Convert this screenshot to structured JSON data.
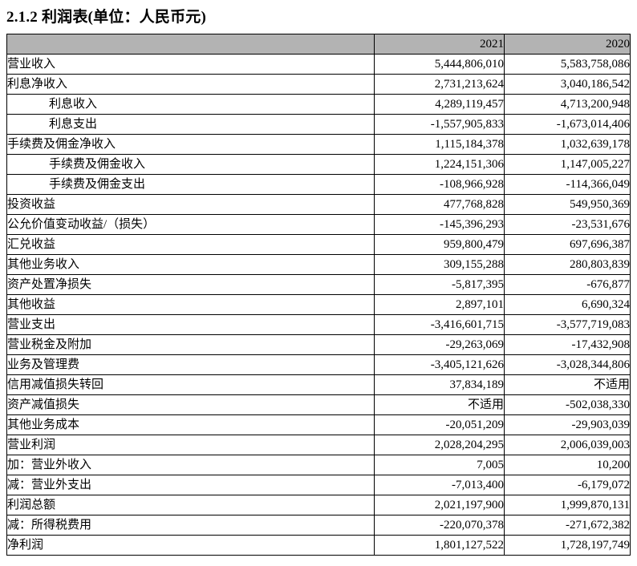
{
  "title": "2.1.2 利润表(单位：人民币元)",
  "table": {
    "columns": [
      "",
      "2021",
      "2020"
    ],
    "rows": [
      {
        "label": "营业收入",
        "indent": 0,
        "v2021": "5,444,806,010",
        "v2020": "5,583,758,086"
      },
      {
        "label": "利息净收入",
        "indent": 0,
        "v2021": "2,731,213,624",
        "v2020": "3,040,186,542"
      },
      {
        "label": "利息收入",
        "indent": 1,
        "v2021": "4,289,119,457",
        "v2020": "4,713,200,948"
      },
      {
        "label": "利息支出",
        "indent": 1,
        "v2021": "-1,557,905,833",
        "v2020": "-1,673,014,406"
      },
      {
        "label": "手续费及佣金净收入",
        "indent": 0,
        "v2021": "1,115,184,378",
        "v2020": "1,032,639,178"
      },
      {
        "label": "手续费及佣金收入",
        "indent": 1,
        "v2021": "1,224,151,306",
        "v2020": "1,147,005,227"
      },
      {
        "label": "手续费及佣金支出",
        "indent": 1,
        "v2021": "-108,966,928",
        "v2020": "-114,366,049"
      },
      {
        "label": "投资收益",
        "indent": 0,
        "v2021": "477,768,828",
        "v2020": "549,950,369"
      },
      {
        "label": "公允价值变动收益/（损失）",
        "indent": 0,
        "v2021": "-145,396,293",
        "v2020": "-23,531,676"
      },
      {
        "label": "汇兑收益",
        "indent": 0,
        "v2021": "959,800,479",
        "v2020": "697,696,387"
      },
      {
        "label": "其他业务收入",
        "indent": 0,
        "v2021": "309,155,288",
        "v2020": "280,803,839"
      },
      {
        "label": "资产处置净损失",
        "indent": 0,
        "v2021": "-5,817,395",
        "v2020": "-676,877"
      },
      {
        "label": "其他收益",
        "indent": 0,
        "v2021": "2,897,101",
        "v2020": "6,690,324"
      },
      {
        "label": "营业支出",
        "indent": 0,
        "v2021": "-3,416,601,715",
        "v2020": "-3,577,719,083"
      },
      {
        "label": "营业税金及附加",
        "indent": 0,
        "v2021": "-29,263,069",
        "v2020": "-17,432,908"
      },
      {
        "label": "业务及管理费",
        "indent": 0,
        "v2021": "-3,405,121,626",
        "v2020": "-3,028,344,806"
      },
      {
        "label": "信用减值损失转回",
        "indent": 0,
        "v2021": "37,834,189",
        "v2020": "不适用"
      },
      {
        "label": "资产减值损失",
        "indent": 0,
        "v2021": "不适用",
        "v2020": "-502,038,330"
      },
      {
        "label": "其他业务成本",
        "indent": 0,
        "v2021": "-20,051,209",
        "v2020": "-29,903,039"
      },
      {
        "label": "营业利润",
        "indent": 0,
        "v2021": "2,028,204,295",
        "v2020": "2,006,039,003"
      },
      {
        "label": "加：营业外收入",
        "indent": 0,
        "v2021": "7,005",
        "v2020": "10,200"
      },
      {
        "label": "减：营业外支出",
        "indent": 0,
        "v2021": "-7,013,400",
        "v2020": "-6,179,072"
      },
      {
        "label": "利润总额",
        "indent": 0,
        "v2021": "2,021,197,900",
        "v2020": "1,999,870,131"
      },
      {
        "label": "减：所得税费用",
        "indent": 0,
        "v2021": "-220,070,378",
        "v2020": "-271,672,382"
      },
      {
        "label": "净利润",
        "indent": 0,
        "v2021": "1,801,127,522",
        "v2020": "1,728,197,749"
      }
    ]
  },
  "colors": {
    "header_bg": "#b3b3b3",
    "border": "#000000",
    "text": "#000000",
    "background": "#ffffff"
  }
}
